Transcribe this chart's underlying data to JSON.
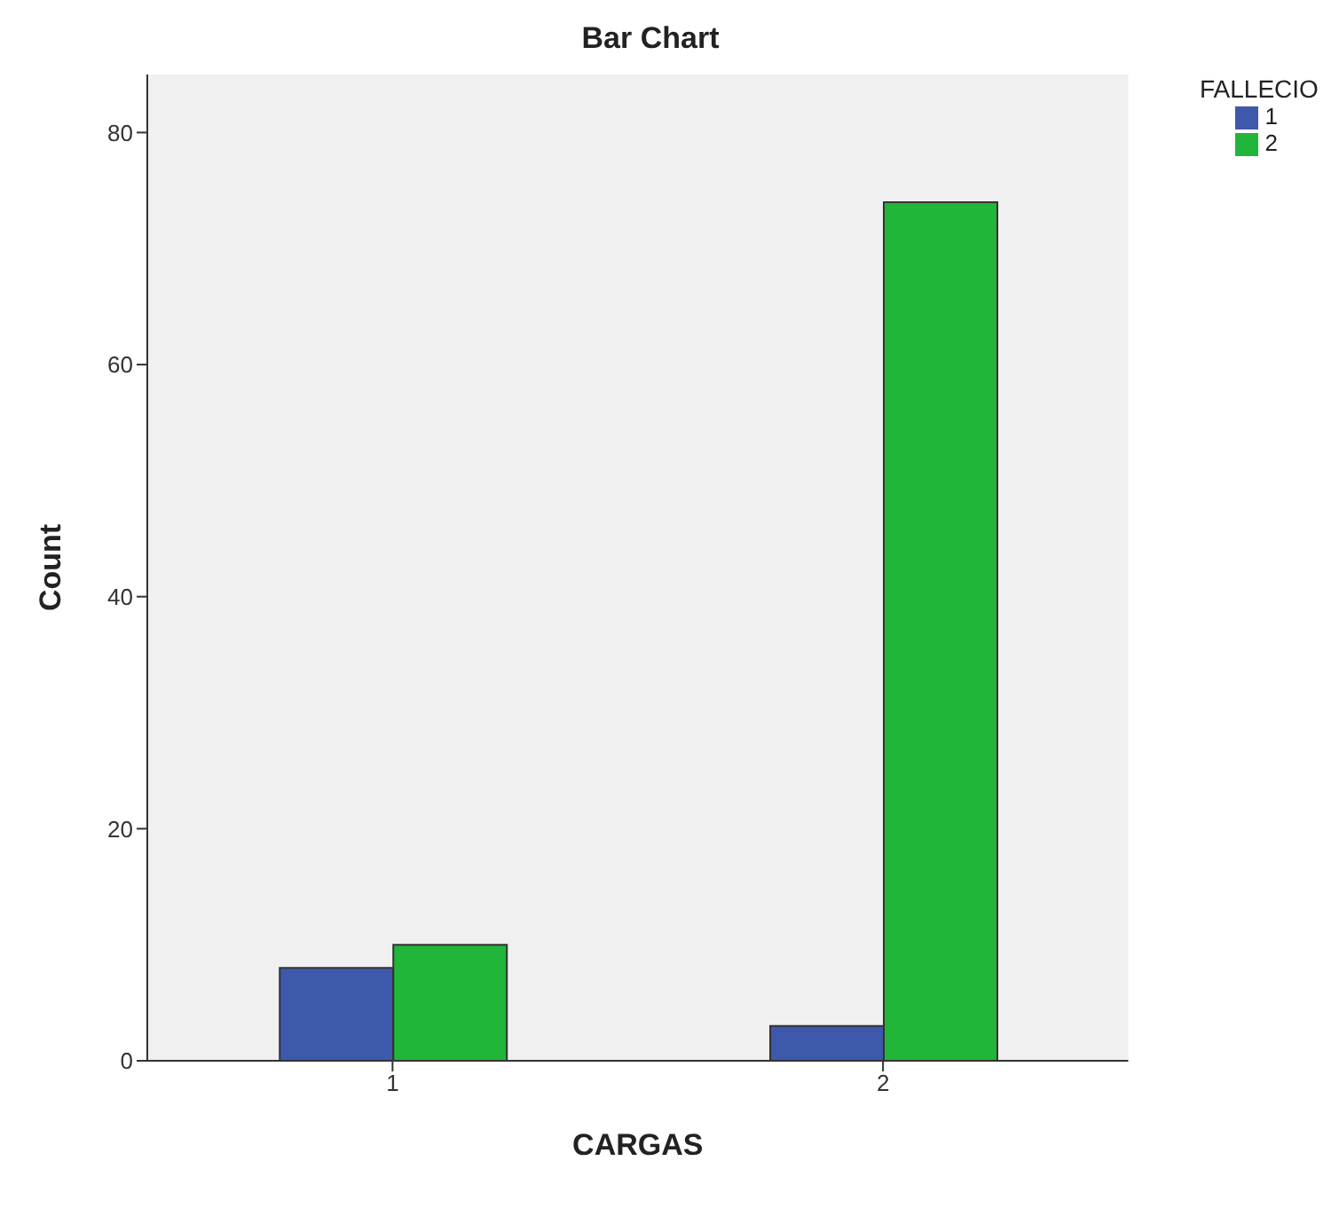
{
  "chart_data": {
    "type": "bar",
    "title": "Bar Chart",
    "xlabel": "CARGAS",
    "ylabel": "Count",
    "legend_title": "FALLECIO",
    "categories": [
      "1",
      "2"
    ],
    "series": [
      {
        "name": "1",
        "color": "#3e58ac",
        "values": [
          8,
          3
        ]
      },
      {
        "name": "2",
        "color": "#21b53a",
        "values": [
          10,
          74
        ]
      }
    ],
    "ylim": [
      0,
      85
    ],
    "yticks": [
      0,
      20,
      40,
      60,
      80
    ],
    "grid": false,
    "legend": "top right"
  }
}
